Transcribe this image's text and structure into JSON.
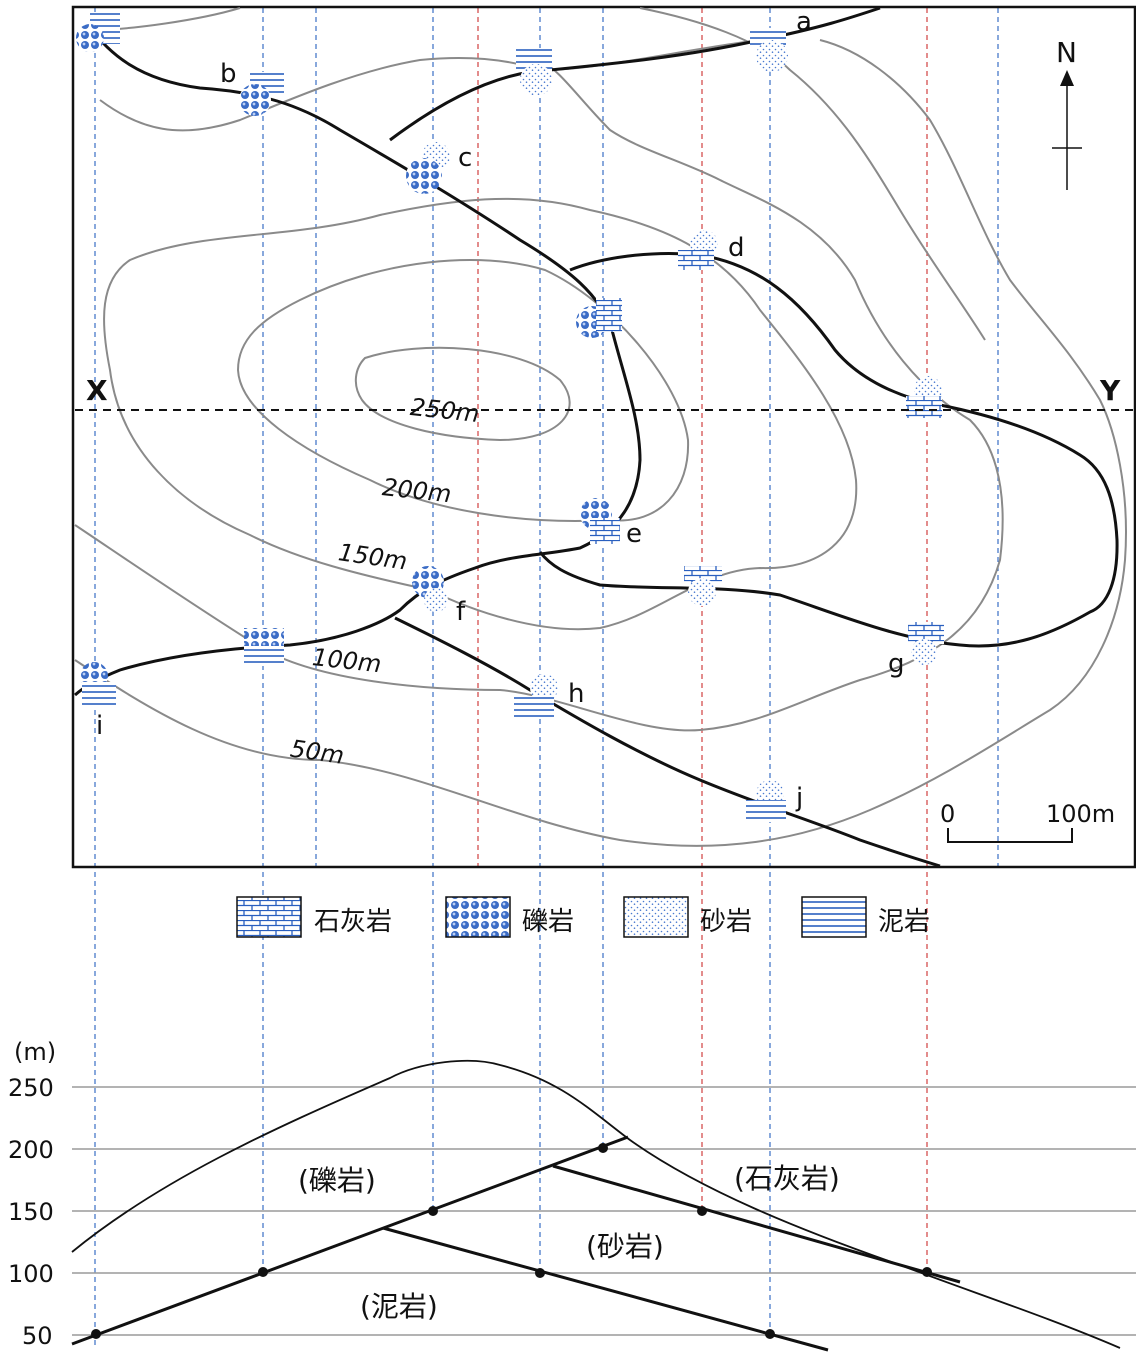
{
  "map": {
    "north_label": "N",
    "section_start": "X",
    "section_end": "Y",
    "scale_zero": "0",
    "scale_end": "100m",
    "points": [
      "a",
      "b",
      "c",
      "d",
      "e",
      "f",
      "g",
      "h",
      "i",
      "j"
    ],
    "contours": [
      "250m",
      "200m",
      "150m",
      "100m",
      "50m"
    ]
  },
  "legend": [
    {
      "label": "石灰岩",
      "pattern": "limestone"
    },
    {
      "label": "礫岩",
      "pattern": "conglomerate"
    },
    {
      "label": "砂岩",
      "pattern": "sandstone"
    },
    {
      "label": "泥岩",
      "pattern": "mudstone"
    }
  ],
  "section": {
    "unit_label": "(m)",
    "ticks": [
      "250",
      "200",
      "150",
      "100",
      "50"
    ],
    "rock_labels": [
      "(礫岩)",
      "(石灰岩)",
      "(砂岩)",
      "(泥岩)"
    ]
  },
  "colors": {
    "contour": "#8a8a8a",
    "boundary": "#111111",
    "guide_blue": "#3a6fc4",
    "guide_red": "#d04040",
    "rock_fill": "#2a5fbf"
  }
}
